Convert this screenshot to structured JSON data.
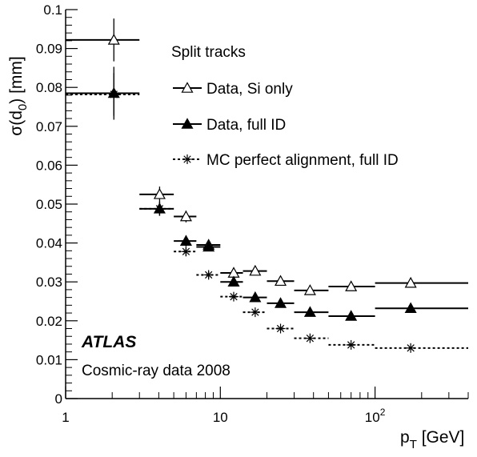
{
  "chart_data": {
    "type": "scatter",
    "ylabel": {
      "main": "σ(d",
      "sub": "0",
      "post": ") [mm]"
    },
    "xlabel": {
      "main": "p",
      "sub": "T",
      "post": " [GeV]"
    },
    "xscale": "log",
    "xlim": [
      1,
      400
    ],
    "ylim": [
      0,
      0.1
    ],
    "yticks": [
      "0",
      "0.01",
      "0.02",
      "0.03",
      "0.04",
      "0.05",
      "0.06",
      "0.07",
      "0.08",
      "0.09",
      "0.1"
    ],
    "xticks": [
      {
        "v": 1,
        "base": "1",
        "exp": ""
      },
      {
        "v": 10,
        "base": "10",
        "exp": ""
      },
      {
        "v": 100,
        "base": "10",
        "exp": "2"
      }
    ],
    "legend": {
      "title": "Split tracks",
      "position": "top-right",
      "entries": [
        "Data, Si only",
        "Data, full ID",
        "MC perfect alignment, full ID"
      ]
    },
    "annotations": {
      "experiment": "ATLAS",
      "dataset": "Cosmic-ray data 2008"
    },
    "series": [
      {
        "name": "Data, Si only",
        "marker": "open-triangle",
        "line": "solid",
        "points": [
          {
            "x": 2.05,
            "xlo": 1,
            "xhi": 3,
            "y": 0.0922,
            "yerr": 0.0055
          },
          {
            "x": 4.05,
            "xlo": 3,
            "xhi": 5,
            "y": 0.0525,
            "yerr": 0.002
          },
          {
            "x": 6.0,
            "xlo": 5,
            "xhi": 7,
            "y": 0.0468,
            "yerr": 0.0015
          },
          {
            "x": 8.4,
            "xlo": 7,
            "xhi": 10,
            "y": 0.0395,
            "yerr": 0.001
          },
          {
            "x": 12.2,
            "xlo": 10,
            "xhi": 14,
            "y": 0.0323,
            "yerr": 0.0007
          },
          {
            "x": 16.8,
            "xlo": 14,
            "xhi": 20,
            "y": 0.0328,
            "yerr": 0.0006
          },
          {
            "x": 24.5,
            "xlo": 20,
            "xhi": 30,
            "y": 0.0302,
            "yerr": 0.0005
          },
          {
            "x": 38,
            "xlo": 30,
            "xhi": 50,
            "y": 0.0278,
            "yerr": 0.0005
          },
          {
            "x": 70,
            "xlo": 50,
            "xhi": 100,
            "y": 0.0288,
            "yerr": 0.0005
          },
          {
            "x": 170,
            "xlo": 100,
            "xhi": 400,
            "y": 0.0297,
            "yerr": 0.0008
          }
        ]
      },
      {
        "name": "Data, full ID",
        "marker": "filled-triangle",
        "line": "solid",
        "points": [
          {
            "x": 2.05,
            "xlo": 1,
            "xhi": 3,
            "y": 0.0785,
            "yerr": 0.0068
          },
          {
            "x": 4.05,
            "xlo": 3,
            "xhi": 5,
            "y": 0.0488,
            "yerr": 0.0018
          },
          {
            "x": 6.0,
            "xlo": 5,
            "xhi": 7,
            "y": 0.0405,
            "yerr": 0.0014
          },
          {
            "x": 8.4,
            "xlo": 7,
            "xhi": 10,
            "y": 0.039,
            "yerr": 0.001
          },
          {
            "x": 12.2,
            "xlo": 10,
            "xhi": 14,
            "y": 0.03,
            "yerr": 0.0007
          },
          {
            "x": 16.8,
            "xlo": 14,
            "xhi": 20,
            "y": 0.026,
            "yerr": 0.0006
          },
          {
            "x": 24.5,
            "xlo": 20,
            "xhi": 30,
            "y": 0.0245,
            "yerr": 0.0005
          },
          {
            "x": 38,
            "xlo": 30,
            "xhi": 50,
            "y": 0.0222,
            "yerr": 0.0005
          },
          {
            "x": 70,
            "xlo": 50,
            "xhi": 100,
            "y": 0.0212,
            "yerr": 0.0004
          },
          {
            "x": 170,
            "xlo": 100,
            "xhi": 400,
            "y": 0.0232,
            "yerr": 0.0006
          }
        ]
      },
      {
        "name": "MC perfect alignment, full ID",
        "marker": "asterisk",
        "line": "dotted",
        "points": [
          {
            "x": 2.05,
            "xlo": 1,
            "xhi": 3,
            "y": 0.0782,
            "yerr": 0.0055
          },
          {
            "x": 4.05,
            "xlo": 3,
            "xhi": 5,
            "y": 0.0488,
            "yerr": 0.0018
          },
          {
            "x": 6.0,
            "xlo": 5,
            "xhi": 7,
            "y": 0.0378,
            "yerr": 0.0012
          },
          {
            "x": 8.4,
            "xlo": 7,
            "xhi": 10,
            "y": 0.0318,
            "yerr": 0.0008
          },
          {
            "x": 12.2,
            "xlo": 10,
            "xhi": 14,
            "y": 0.0262,
            "yerr": 0.0006
          },
          {
            "x": 16.8,
            "xlo": 14,
            "xhi": 20,
            "y": 0.0222,
            "yerr": 0.0005
          },
          {
            "x": 24.5,
            "xlo": 20,
            "xhi": 30,
            "y": 0.018,
            "yerr": 0.0004
          },
          {
            "x": 38,
            "xlo": 30,
            "xhi": 50,
            "y": 0.0155,
            "yerr": 0.0004
          },
          {
            "x": 70,
            "xlo": 50,
            "xhi": 100,
            "y": 0.0138,
            "yerr": 0.0003
          },
          {
            "x": 170,
            "xlo": 100,
            "xhi": 400,
            "y": 0.013,
            "yerr": 0.0003
          }
        ]
      }
    ]
  }
}
